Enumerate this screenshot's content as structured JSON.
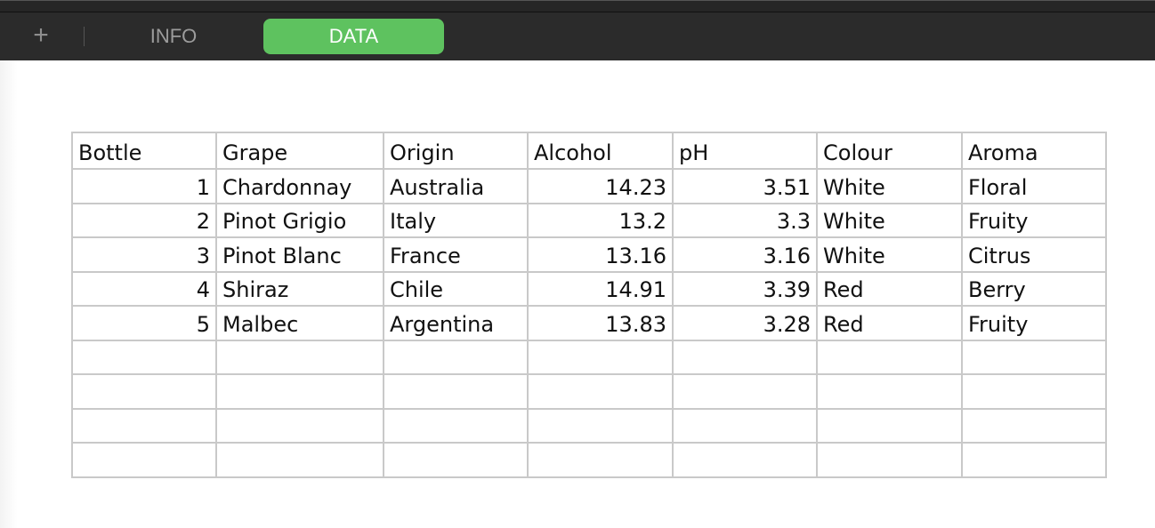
{
  "toolbar": {
    "add_label": "+",
    "tabs": [
      {
        "label": "INFO"
      },
      {
        "label": "DATA"
      }
    ],
    "active_color": "#5ec25f"
  },
  "table": {
    "headers": [
      "Bottle",
      "Grape",
      "Origin",
      "Alcohol",
      "pH",
      "Colour",
      "Aroma"
    ],
    "rows": [
      [
        "1",
        "Chardonnay",
        "Australia",
        "14.23",
        "3.51",
        "White",
        "Floral"
      ],
      [
        "2",
        "Pinot Grigio",
        "Italy",
        "13.2",
        "3.3",
        "White",
        "Fruity"
      ],
      [
        "3",
        "Pinot Blanc",
        "France",
        "13.16",
        "3.16",
        "White",
        "Citrus"
      ],
      [
        "4",
        "Shiraz",
        "Chile",
        "14.91",
        "3.39",
        "Red",
        "Berry"
      ],
      [
        "5",
        "Malbec",
        "Argentina",
        "13.83",
        "3.28",
        "Red",
        "Fruity"
      ],
      [
        "",
        "",
        "",
        "",
        "",
        "",
        ""
      ],
      [
        "",
        "",
        "",
        "",
        "",
        "",
        ""
      ],
      [
        "",
        "",
        "",
        "",
        "",
        "",
        ""
      ],
      [
        "",
        "",
        "",
        "",
        "",
        "",
        ""
      ]
    ]
  }
}
